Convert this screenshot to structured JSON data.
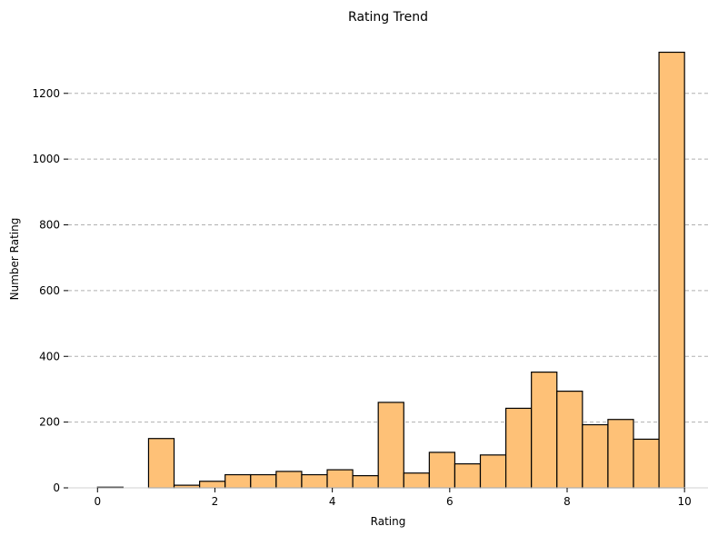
{
  "chart_data": {
    "type": "bar",
    "title": "Rating Trend",
    "xlabel": "Rating",
    "ylabel": "Number Rating",
    "bin_edges": [
      0.0,
      0.4348,
      0.8696,
      1.3043,
      1.7391,
      2.1739,
      2.6087,
      3.0435,
      3.4783,
      3.913,
      4.3478,
      4.7826,
      5.2174,
      5.6522,
      6.087,
      6.5217,
      6.9565,
      7.3913,
      7.8261,
      8.2609,
      8.6957,
      9.1304,
      9.5652,
      10.0
    ],
    "values": [
      2,
      0,
      150,
      8,
      20,
      40,
      40,
      50,
      40,
      55,
      37,
      260,
      45,
      108,
      73,
      100,
      242,
      352,
      294,
      192,
      208,
      148,
      1325
    ],
    "xlim": [
      -0.5,
      10.4
    ],
    "ylim": [
      0,
      1390
    ],
    "xticks": [
      0,
      2,
      4,
      6,
      8,
      10
    ],
    "yticks": [
      0,
      200,
      400,
      600,
      800,
      1000,
      1200
    ],
    "ygrid": true,
    "bar_color": "#FEC177",
    "edge_color": "#000000",
    "grid_color": "#b0b0b0"
  }
}
